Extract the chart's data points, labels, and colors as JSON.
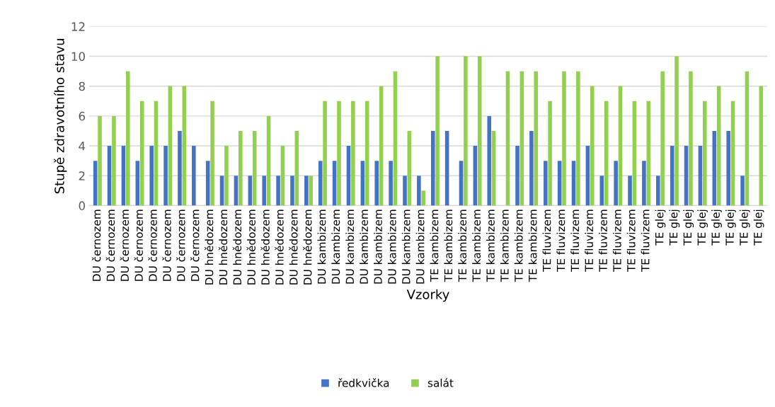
{
  "chart_data": {
    "type": "bar",
    "xlabel": "Vzorky",
    "ylabel": "Stupě zdravotního stavu",
    "categories": [
      "DU černozem",
      "DU černozem",
      "DU černozem",
      "DU černozem",
      "DU černozem",
      "DU černozem",
      "DU černozem",
      "DU černozem",
      "DU hnědozem",
      "DU hnědozem",
      "DU hnědozem",
      "DU hnědozem",
      "DU hnědozem",
      "DU hnědozem",
      "DU hnědozem",
      "DU hnědozem",
      "DU kambizem",
      "DU kambizem",
      "DU kambizem",
      "DU kambizem",
      "DU kambizem",
      "DU kambizem",
      "DU kambizem",
      "DU kambizem",
      "TE kambizem",
      "TE kambizem",
      "TE kambizem",
      "TE kambizem",
      "TE kambizem",
      "TE kambizem",
      "TE kambizem",
      "TE kambizem",
      "TE fluvizem",
      "TE fluvizem",
      "TE fluvizem",
      "TE fluvizem",
      "TE fluvizem",
      "TE fluvizem",
      "TE fluvizem",
      "TE fluvizem",
      "TE glej",
      "TE glej",
      "TE glej",
      "TE glej",
      "TE glej",
      "TE glej",
      "TE glej",
      "TE glej"
    ],
    "series": [
      {
        "name": "ředkvička",
        "color": "#4472c4",
        "values": [
          3,
          4,
          4,
          3,
          4,
          4,
          5,
          4,
          3,
          2,
          2,
          2,
          2,
          2,
          2,
          2,
          3,
          3,
          4,
          3,
          3,
          3,
          2,
          2,
          5,
          5,
          3,
          4,
          6,
          0,
          4,
          5,
          3,
          3,
          3,
          4,
          2,
          3,
          2,
          3,
          2,
          4,
          4,
          4,
          5,
          5,
          2,
          0
        ]
      },
      {
        "name": "salát",
        "color": "#92d050",
        "values": [
          6,
          6,
          9,
          7,
          7,
          8,
          8,
          0,
          7,
          4,
          5,
          5,
          6,
          4,
          5,
          2,
          7,
          7,
          7,
          7,
          8,
          9,
          5,
          1,
          10,
          0,
          10,
          10,
          5,
          9,
          9,
          9,
          7,
          9,
          9,
          8,
          7,
          8,
          7,
          7,
          9,
          10,
          9,
          7,
          8,
          7,
          9,
          8
        ]
      }
    ],
    "ylim": [
      0,
      12
    ],
    "yticks": [
      0,
      2,
      4,
      6,
      8,
      10,
      12
    ],
    "grid": "y",
    "legend": "bottom"
  }
}
